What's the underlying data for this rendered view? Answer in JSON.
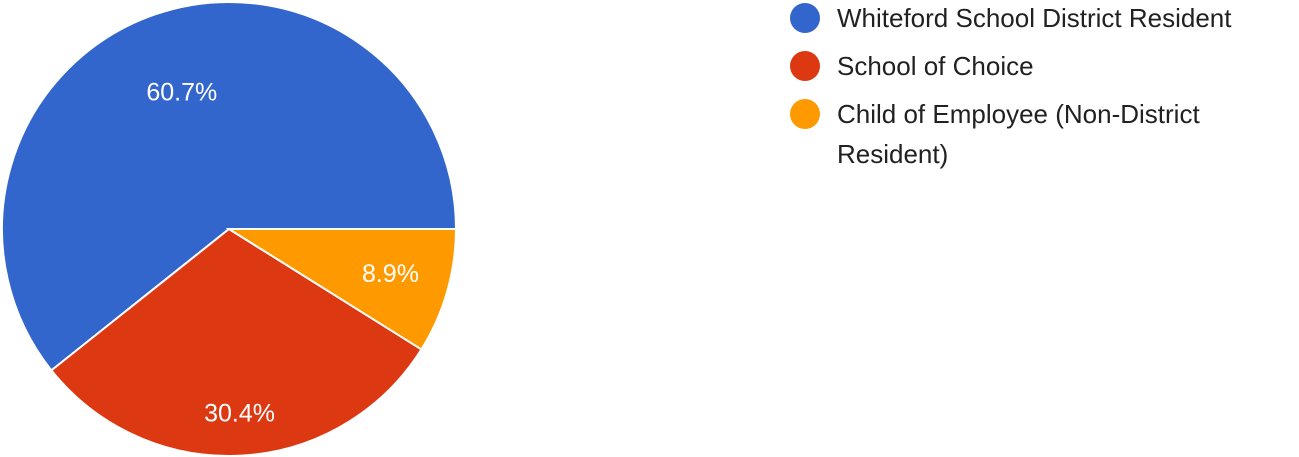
{
  "chart_data": {
    "type": "pie",
    "title": "",
    "slices": [
      {
        "label": "Whiteford School District Resident",
        "value": 60.7,
        "display": "60.7%",
        "color": "#3366cc"
      },
      {
        "label": "School of Choice",
        "value": 30.4,
        "display": "30.4%",
        "color": "#dc3912"
      },
      {
        "label": "Child of Employee (Non-District Resident)",
        "value": 8.9,
        "display": "8.9%",
        "color": "#ff9900"
      }
    ],
    "start_angle_deg": 0,
    "direction": "counter-clockwise",
    "legend_position": "right"
  }
}
